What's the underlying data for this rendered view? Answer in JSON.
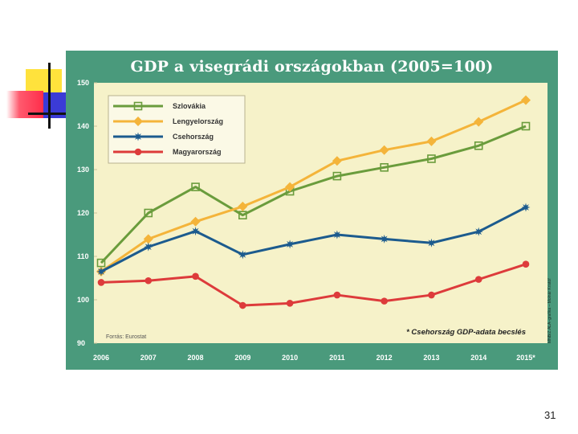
{
  "page": {
    "number": "31"
  },
  "chart_data": {
    "type": "line",
    "title": "GDP a visegrádi országokban (2005=100)",
    "xlabel": "",
    "ylabel": "",
    "categories": [
      "2006",
      "2007",
      "2008",
      "2009",
      "2010",
      "2011",
      "2012",
      "2013",
      "2014",
      "2015*"
    ],
    "ylim": [
      90,
      150
    ],
    "yticks": [
      90,
      100,
      110,
      120,
      130,
      140,
      150
    ],
    "grid": false,
    "legend_position": "top-left",
    "series": [
      {
        "name": "Szlovákia",
        "color": "#6a9c3c",
        "marker": "square-open",
        "values": [
          108.5,
          120,
          126,
          119.5,
          125,
          128.5,
          130.5,
          132.5,
          135.5,
          140
        ]
      },
      {
        "name": "Lengyelország",
        "color": "#f4b43a",
        "marker": "diamond",
        "values": [
          106.5,
          114,
          118,
          121.5,
          126,
          132,
          134.5,
          136.5,
          141,
          146
        ]
      },
      {
        "name": "Csehország",
        "color": "#1c5b8e",
        "marker": "star",
        "values": [
          106.5,
          112.2,
          115.8,
          110.4,
          112.8,
          115,
          114,
          113.1,
          115.7,
          121.3
        ]
      },
      {
        "name": "Magyarország",
        "color": "#dd3b3b",
        "marker": "circle",
        "values": [
          104,
          104.4,
          105.4,
          98.7,
          99.2,
          101.1,
          99.7,
          101.1,
          104.7,
          108.2
        ]
      }
    ],
    "source": "Forrás: Eurostat",
    "note": "* Csehország GDP-adata becslés",
    "credit": "MNB/Z.ALA–grafika – Molnár Kristóf",
    "colors": {
      "frame": "#4a9a7c",
      "plot_background": "#f6f2c9"
    }
  }
}
